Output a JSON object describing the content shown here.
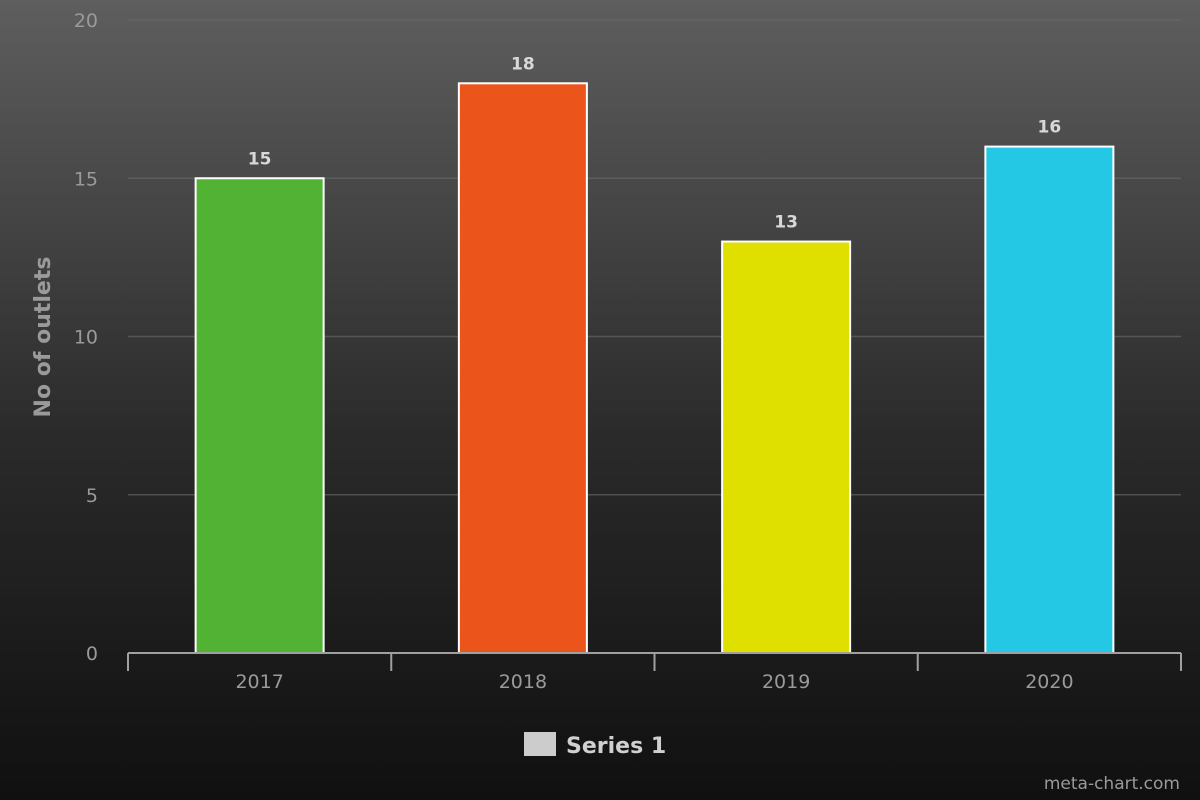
{
  "chart_data": {
    "type": "bar",
    "title": "",
    "xlabel": "",
    "ylabel": "No of outlets",
    "categories": [
      "2017",
      "2018",
      "2019",
      "2020"
    ],
    "series": [
      {
        "name": "Series 1",
        "values": [
          15,
          18,
          13,
          16
        ]
      }
    ],
    "bar_colors": [
      "#52b234",
      "#eb551b",
      "#dfdf00",
      "#24c8e4"
    ],
    "legend_color": "#cccccc",
    "ylim": [
      0,
      20
    ],
    "yticks": [
      0,
      5,
      10,
      15,
      20
    ],
    "grid": true,
    "legend_placement": "bottom",
    "data_labels": true
  },
  "credit": "meta-chart.com"
}
